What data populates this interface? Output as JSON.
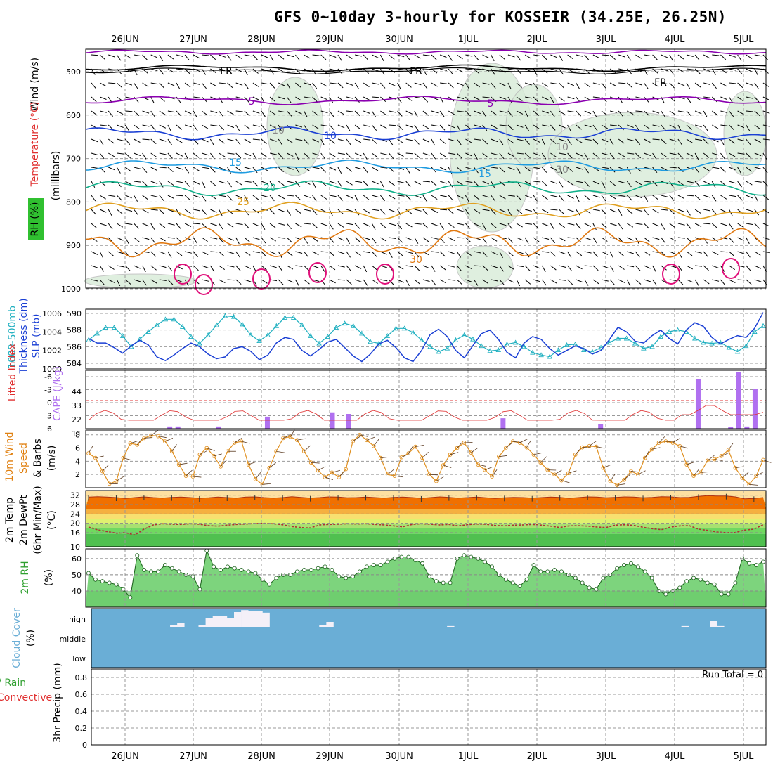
{
  "title": "GFS 0~10day 3-hourly for KOSSEIR (34.25E, 26.25N)",
  "dates": [
    "26JUN",
    "27JUN",
    "28JUN",
    "29JUN",
    "30JUN",
    "1JUL",
    "2JUL",
    "3JUL",
    "4JUL",
    "5JUL"
  ],
  "colors": {
    "freezing": "#000000",
    "t5": "#8b00b0",
    "t10": "#1a3fd4",
    "t15": "#1e9be0",
    "t20": "#10b08a",
    "t25": "#e0a020",
    "t30": "#e07810",
    "t35": "#e0107a",
    "rh": "#cfe8cf",
    "thickness": "#20b0c0",
    "slp": "#1a3fd4",
    "cape": "#b070f0",
    "lifted": "#e03030",
    "wind10": "#e09020",
    "temp2m": "#f07000",
    "dewpt": "#b03030",
    "rh2m_fill": "#66cc66",
    "cloud": "#6aaed6"
  },
  "panels": {
    "upper": {
      "labels": [
        "Wind (m/s)",
        "Temperature (°C)",
        "RH (%)",
        "(millibars)"
      ],
      "ticks": [
        "500",
        "600",
        "700",
        "800",
        "900",
        "1000"
      ],
      "iso_labels": [
        "FR",
        "FR",
        "FR",
        "5",
        "5",
        "10",
        "10",
        "15",
        "15",
        "20",
        "25",
        "30",
        "10",
        "30"
      ]
    },
    "thickness": {
      "labels": [
        "1000-500mb",
        "Thickness (dm)",
        "SLP (mb)"
      ],
      "left_ticks": [
        "590",
        "588",
        "586",
        "584"
      ],
      "right_ticks": [
        "1006",
        "1004",
        "1002",
        "1000"
      ]
    },
    "cape": {
      "labels": [
        "Lifted Index",
        "CAPE (J/kg)"
      ],
      "left_ticks": [
        "-6",
        "-3",
        "0",
        "3",
        "6"
      ],
      "right_ticks": [
        "44",
        "33",
        "22",
        "11"
      ]
    },
    "wind10m": {
      "labels": [
        "10m Wind",
        "Speed",
        "& Barbs",
        "(m/s)"
      ],
      "ticks": [
        "8",
        "6",
        "4",
        "2"
      ]
    },
    "temp2m": {
      "labels": [
        "2m Temp",
        "2m DewPt",
        "(6hr Min/Max)",
        "(°C)"
      ],
      "ticks": [
        "32",
        "28",
        "24",
        "20",
        "16",
        "10"
      ]
    },
    "rh2m": {
      "labels": [
        "2m RH",
        "(%)"
      ],
      "ticks": [
        "60",
        "50",
        "40"
      ]
    },
    "cloud": {
      "labels": [
        "Cloud Cover",
        "(%)"
      ],
      "ticks": [
        "high",
        "middle",
        "low"
      ]
    },
    "precip": {
      "labels": [
        "Total / Rain",
        "Convective",
        "3hr Precip (mm)"
      ],
      "ticks": [
        "0.8",
        "0.6",
        "0.4",
        "0.2",
        "0"
      ],
      "run_total": "Run Total = 0"
    }
  },
  "chart_data": [
    {
      "type": "line",
      "name": "1000-500mb Thickness (dm)",
      "y": [
        586.8,
        587.6,
        588.3,
        588.3,
        587.3,
        586.0,
        586.9,
        587.8,
        588.6,
        589.3,
        589.3,
        588.4,
        587.2,
        586.4,
        587.4,
        588.6,
        589.7,
        589.6,
        588.7,
        587.4,
        586.7,
        587.4,
        588.5,
        589.5,
        589.5,
        588.6,
        587.3,
        586.4,
        587.2,
        588.3,
        588.8,
        588.5,
        587.6,
        586.6,
        586.4,
        587.3,
        588.2,
        588.2,
        587.7,
        586.8,
        586.0,
        585.4,
        585.8,
        586.8,
        587.4,
        586.9,
        586.1,
        585.5,
        585.6,
        586.3,
        586.5,
        586.0,
        585.3,
        585.0,
        584.8,
        585.6,
        586.2,
        586.3,
        585.6,
        585.4,
        585.9,
        586.5,
        587.0,
        587.0,
        586.4,
        585.8,
        586.0,
        587.2,
        587.8,
        588.0,
        587.8,
        587.0,
        586.5,
        586.4,
        586.5,
        585.9,
        585.4,
        586.1,
        587.8,
        588.5
      ],
      "ylim": [
        584,
        590
      ]
    },
    {
      "type": "line",
      "name": "SLP (mb)",
      "y": [
        1003.3,
        1002.8,
        1002.8,
        1002.3,
        1001.7,
        1002.5,
        1003.1,
        1002.6,
        1001.3,
        1000.9,
        1001.5,
        1002.2,
        1002.8,
        1002.4,
        1001.6,
        1001.1,
        1001.3,
        1002.2,
        1002.4,
        1001.9,
        1001.0,
        1001.5,
        1002.8,
        1003.4,
        1003.2,
        1002.0,
        1001.4,
        1002.1,
        1002.9,
        1003.2,
        1002.3,
        1001.4,
        1000.8,
        1001.6,
        1002.7,
        1003.1,
        1002.3,
        1001.2,
        1000.8,
        1002.0,
        1003.7,
        1004.3,
        1003.5,
        1002.0,
        1001.2,
        1002.5,
        1003.8,
        1004.2,
        1003.2,
        1001.8,
        1001.2,
        1002.8,
        1003.5,
        1003.2,
        1002.2,
        1001.5,
        1002.0,
        1002.5,
        1002.2,
        1001.6,
        1002.0,
        1003.2,
        1004.5,
        1004.0,
        1003.0,
        1002.8,
        1003.6,
        1004.2,
        1003.3,
        1002.7,
        1004.2,
        1005.0,
        1004.6,
        1003.4,
        1002.7,
        1003.2,
        1003.6,
        1003.4,
        1004.4,
        1006.1
      ],
      "ylim": [
        1000,
        1006
      ]
    },
    {
      "type": "bar",
      "name": "CAPE (J/kg)",
      "x_index": [
        10,
        11,
        16,
        22,
        30,
        32,
        33,
        51,
        63,
        75,
        79,
        80,
        81,
        82
      ],
      "values": [
        1.8,
        1.8,
        1.8,
        9.8,
        13.3,
        12.0,
        0,
        8.5,
        3.5,
        40.0,
        1.4,
        46.0,
        1.8,
        32.0
      ],
      "ylim": [
        0,
        44
      ]
    },
    {
      "type": "line",
      "name": "10m Wind Speed (m/s)",
      "y": [
        5.2,
        4.5,
        2.5,
        0.6,
        1.0,
        4.5,
        6.7,
        6.5,
        7.5,
        7.9,
        7.8,
        7.0,
        5.5,
        3.5,
        1.8,
        1.7,
        5.0,
        6.0,
        4.8,
        3.2,
        5.5,
        6.8,
        7.0,
        3.5,
        1.3,
        0.5,
        3.0,
        5.5,
        7.5,
        7.7,
        7.2,
        5.5,
        3.8,
        2.6,
        1.6,
        2.3,
        1.6,
        2.8,
        7.0,
        8.0,
        7.2,
        6.3,
        4.5,
        2.0,
        1.8,
        4.6,
        5.2,
        6.2,
        4.5,
        2.0,
        1.0,
        3.4,
        5.0,
        6.0,
        6.8,
        5.3,
        3.5,
        2.7,
        1.7,
        4.7,
        6.0,
        7.0,
        6.8,
        6.1,
        5.0,
        3.8,
        2.7,
        2.0,
        1.1,
        2.2,
        5.0,
        6.1,
        6.3,
        6.2,
        3.0,
        1.0,
        0.4,
        1.2,
        2.5,
        2.0,
        4.5,
        5.8,
        6.8,
        7.0,
        6.8,
        6.3,
        3.5,
        1.8,
        2.3,
        4.1,
        4.3,
        4.8,
        5.7,
        3.0,
        1.5,
        0.5,
        1.8,
        4.2
      ],
      "ylim": [
        0,
        8
      ]
    },
    {
      "type": "area",
      "name": "2m Temp (°C)",
      "y": [
        31.2,
        31.4,
        31.2,
        31.0,
        30.6,
        31.0,
        31.3,
        31.0,
        30.8,
        31.1,
        31.2,
        31.0,
        30.7,
        30.9,
        31.2,
        31.0,
        30.8,
        31.2,
        31.3,
        31.0,
        30.8,
        31.0,
        31.4,
        31.1,
        30.8,
        31.0,
        31.3,
        31.2,
        30.9,
        31.0,
        31.2,
        31.0,
        30.8,
        31.1,
        31.2,
        31.0,
        30.7,
        31.0,
        31.3,
        31.1,
        30.8,
        31.0,
        31.2,
        30.9,
        30.6,
        30.9,
        31.1,
        31.0,
        30.8,
        31.0,
        31.2,
        31.1,
        30.7,
        31.0,
        31.3,
        31.2,
        30.9,
        31.1,
        31.3,
        31.2,
        30.9,
        31.1,
        31.4,
        31.3,
        31.0,
        31.1,
        31.5,
        31.8,
        31.7,
        31.7,
        31.3,
        30.5,
        30.6,
        31.0
      ],
      "ylim": [
        10,
        34
      ]
    },
    {
      "type": "line",
      "name": "2m DewPt (°C)",
      "y": [
        18.4,
        17.2,
        16.5,
        15.8,
        16.0,
        15.0,
        17.5,
        19.3,
        19.8,
        19.6,
        19.5,
        19.8,
        19.6,
        19.0,
        18.8,
        19.2,
        19.5,
        19.7,
        19.9,
        20.0,
        19.8,
        19.4,
        18.6,
        18.2,
        18.0,
        19.3,
        19.5,
        19.6,
        19.8,
        19.7,
        19.8,
        19.5,
        19.3,
        18.9,
        18.5,
        19.5,
        19.8,
        19.6,
        19.3,
        19.5,
        18.9,
        19.4,
        19.7,
        19.6,
        19.1,
        18.9,
        19.2,
        19.3,
        19.5,
        19.2,
        18.8,
        18.2,
        18.9,
        19.0,
        18.8,
        18.4,
        18.2,
        19.2,
        19.4,
        19.1,
        18.3,
        17.7,
        17.3,
        18.4,
        18.9,
        19.0,
        17.5,
        17.0,
        16.3,
        16.0,
        16.1,
        17.1,
        17.5,
        19.4
      ],
      "ylim": [
        10,
        34
      ]
    },
    {
      "type": "area",
      "name": "2m RH (%)",
      "y": [
        51,
        47,
        46,
        45,
        44,
        41,
        36,
        62,
        53,
        52,
        52,
        56,
        54,
        52,
        50,
        49,
        41,
        65,
        55,
        53,
        55,
        54,
        53,
        52,
        51,
        47,
        44,
        48,
        50,
        50,
        52,
        53,
        53,
        54,
        55,
        53,
        49,
        48,
        49,
        52,
        55,
        56,
        56,
        58,
        60,
        61,
        61,
        59,
        57,
        49,
        46,
        45,
        45,
        60,
        62,
        61,
        60,
        58,
        55,
        50,
        47,
        45,
        43,
        47,
        56,
        52,
        52,
        53,
        52,
        50,
        48,
        45,
        42,
        41,
        48,
        50,
        54,
        56,
        57,
        55,
        52,
        48,
        40,
        38,
        40,
        42,
        46,
        48,
        47,
        45,
        44,
        38,
        38,
        45,
        60,
        57,
        56,
        58
      ],
      "ylim": [
        30,
        66
      ]
    },
    {
      "type": "bar",
      "name": "Cloud Cover high (%)",
      "x_index": [
        12,
        13,
        16,
        17,
        18,
        19,
        20,
        21,
        22,
        23,
        24,
        25,
        33,
        34,
        51,
        84,
        88,
        89
      ],
      "values": [
        8,
        18,
        10,
        45,
        55,
        55,
        45,
        75,
        85,
        80,
        80,
        72,
        10,
        25,
        4,
        4,
        30,
        4
      ],
      "ylim": [
        0,
        100
      ]
    },
    {
      "type": "bar",
      "name": "3hr Precip (mm)",
      "x_index": [],
      "values": [],
      "ylim": [
        0,
        0.9
      ]
    }
  ]
}
